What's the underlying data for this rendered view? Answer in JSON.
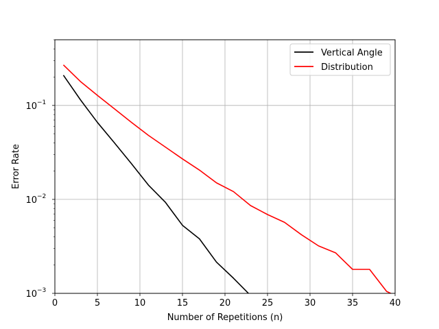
{
  "chart_data": {
    "type": "line",
    "title": "",
    "xlabel": "Number of Repetitions (n)",
    "ylabel": "Error Rate",
    "xlim": [
      0,
      40
    ],
    "ylim": [
      0.001,
      0.5
    ],
    "yscale": "log",
    "grid": true,
    "legend_position": "top-right",
    "x_ticks": [
      0,
      5,
      10,
      15,
      20,
      25,
      30,
      35,
      40
    ],
    "y_ticks": [
      {
        "value": 0.001,
        "base": "10",
        "exp": "−3"
      },
      {
        "value": 0.01,
        "base": "10",
        "exp": "−2"
      },
      {
        "value": 0.1,
        "base": "10",
        "exp": "−1"
      }
    ],
    "series": [
      {
        "name": "Vertical Angle",
        "color": "#000000",
        "x": [
          1,
          3,
          5,
          7,
          9,
          11,
          13,
          15,
          17,
          19,
          21,
          23
        ],
        "y": [
          0.21,
          0.115,
          0.066,
          0.04,
          0.024,
          0.0142,
          0.0093,
          0.0053,
          0.0038,
          0.00215,
          0.00145,
          0.00095
        ]
      },
      {
        "name": "Distribution",
        "color": "#ff0000",
        "x": [
          1,
          3,
          5,
          7,
          9,
          11,
          13,
          15,
          17,
          19,
          21,
          23,
          25,
          27,
          29,
          31,
          33,
          35,
          37,
          39,
          40
        ],
        "y": [
          0.27,
          0.18,
          0.128,
          0.092,
          0.066,
          0.048,
          0.036,
          0.027,
          0.0205,
          0.015,
          0.0121,
          0.0086,
          0.0069,
          0.0057,
          0.0042,
          0.0032,
          0.0027,
          0.0018,
          0.0018,
          0.00105,
          0.00095
        ]
      }
    ]
  }
}
